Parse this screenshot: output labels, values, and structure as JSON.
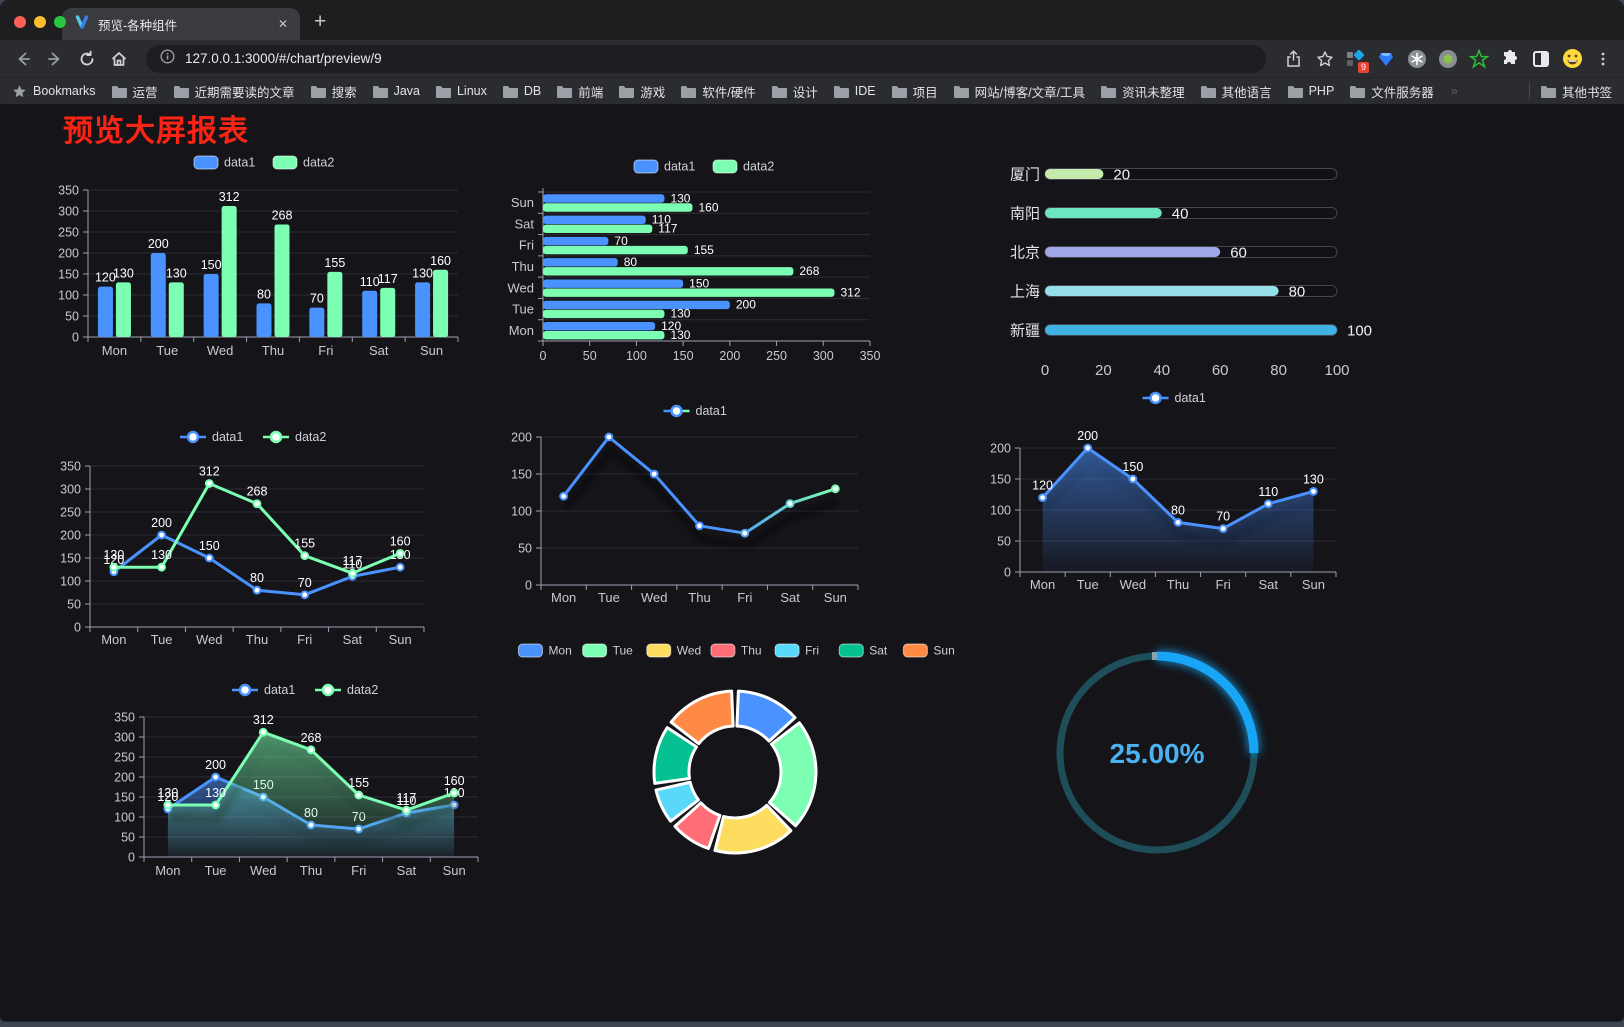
{
  "browser": {
    "tab_title": "预览-各种组件",
    "tab_close": "✕",
    "new_tab_button": "+",
    "url": "127.0.0.1:3000/#/chart/preview/9",
    "extension_badge": "9",
    "traffic_light_colors": [
      "#ff5f57",
      "#febc2e",
      "#28c840"
    ],
    "bookmarks_bar": {
      "bookmarks_label": "Bookmarks",
      "folders": [
        "运营",
        "近期需要读的文章",
        "搜索",
        "Java",
        "Linux",
        "DB",
        "前端",
        "游戏",
        "软件/硬件",
        "设计",
        "IDE",
        "项目",
        "网站/博客/文章/工具",
        "资讯未整理",
        "其他语言",
        "PHP",
        "文件服务器"
      ],
      "overflow_chevron": "»",
      "other_bookmarks": "其他书签"
    }
  },
  "page": {
    "title": "预览大屏报表",
    "title_color": "#fb2414"
  },
  "chart_data": [
    {
      "id": "bar-vertical",
      "type": "bar",
      "orientation": "vertical",
      "categories": [
        "Mon",
        "Tue",
        "Wed",
        "Thu",
        "Fri",
        "Sat",
        "Sun"
      ],
      "series": [
        {
          "name": "data1",
          "color": "#4992ff",
          "values": [
            120,
            200,
            150,
            80,
            70,
            110,
            130
          ]
        },
        {
          "name": "data2",
          "color": "#7cffb2",
          "values": [
            130,
            130,
            312,
            268,
            155,
            117,
            160
          ]
        }
      ],
      "ylim": [
        0,
        350
      ],
      "ytick_step": 50,
      "legend_position": "top",
      "grid": true,
      "value_labels": true
    },
    {
      "id": "bar-horizontal",
      "type": "bar",
      "orientation": "horizontal",
      "note": "Sun displayed at top, Mon at bottom",
      "categories": [
        "Mon",
        "Tue",
        "Wed",
        "Thu",
        "Fri",
        "Sat",
        "Sun"
      ],
      "series": [
        {
          "name": "data1",
          "color": "#4992ff",
          "values": [
            120,
            200,
            150,
            80,
            70,
            110,
            130
          ]
        },
        {
          "name": "data2",
          "color": "#7cffb2",
          "values": [
            130,
            130,
            312,
            268,
            155,
            117,
            160
          ]
        }
      ],
      "xlim": [
        0,
        350
      ],
      "xtick_step": 50,
      "legend_position": "top",
      "value_labels": true
    },
    {
      "id": "capsule-bars",
      "type": "bar",
      "subtype": "capsule-progress",
      "categories": [
        "厦门",
        "南阳",
        "北京",
        "上海",
        "新疆"
      ],
      "values": [
        20,
        40,
        60,
        80,
        100
      ],
      "colors": [
        "#c4ebad",
        "#6be6c1",
        "#a0a7e6",
        "#96dee8",
        "#3fb1e3"
      ],
      "xlim": [
        0,
        100
      ],
      "xticks": [
        0,
        20,
        40,
        60,
        80,
        100
      ],
      "value_labels": true
    },
    {
      "id": "line-two-series",
      "type": "line",
      "categories": [
        "Mon",
        "Tue",
        "Wed",
        "Thu",
        "Fri",
        "Sat",
        "Sun"
      ],
      "series": [
        {
          "name": "data1",
          "color": "#4992ff",
          "values": [
            120,
            200,
            150,
            80,
            70,
            110,
            130
          ]
        },
        {
          "name": "data2",
          "color": "#7cffb2",
          "values": [
            130,
            130,
            312,
            268,
            155,
            117,
            160
          ]
        }
      ],
      "ylim": [
        0,
        350
      ],
      "ytick_step": 50,
      "legend_position": "top",
      "value_labels": true
    },
    {
      "id": "line-gradient",
      "type": "line",
      "categories": [
        "Mon",
        "Tue",
        "Wed",
        "Thu",
        "Fri",
        "Sat",
        "Sun"
      ],
      "series": [
        {
          "name": "data1",
          "gradient": [
            "#4992ff",
            "#7cffb2"
          ],
          "values": [
            120,
            200,
            150,
            80,
            70,
            110,
            130
          ],
          "shadow": true
        }
      ],
      "ylim": [
        0,
        200
      ],
      "ytick_step": 50,
      "legend_position": "top",
      "value_labels": false
    },
    {
      "id": "line-area",
      "type": "line",
      "categories": [
        "Mon",
        "Tue",
        "Wed",
        "Thu",
        "Fri",
        "Sat",
        "Sun"
      ],
      "series": [
        {
          "name": "data1",
          "color": "#4992ff",
          "values": [
            120,
            200,
            150,
            80,
            70,
            110,
            130
          ],
          "area": true,
          "shadow": true
        }
      ],
      "ylim": [
        0,
        200
      ],
      "ytick_step": 50,
      "legend_position": "top",
      "value_labels": true
    },
    {
      "id": "line-two-series-area",
      "type": "line",
      "categories": [
        "Mon",
        "Tue",
        "Wed",
        "Thu",
        "Fri",
        "Sat",
        "Sun"
      ],
      "series": [
        {
          "name": "data1",
          "color": "#4992ff",
          "values": [
            120,
            200,
            150,
            80,
            70,
            110,
            130
          ],
          "area": true,
          "shadow": true
        },
        {
          "name": "data2",
          "color": "#7cffb2",
          "values": [
            130,
            130,
            312,
            268,
            155,
            117,
            160
          ],
          "area": true,
          "shadow": true
        }
      ],
      "ylim": [
        0,
        350
      ],
      "ytick_step": 50,
      "legend_position": "top",
      "value_labels": true
    },
    {
      "id": "donut",
      "type": "pie",
      "subtype": "donut-rounded",
      "labels": [
        "Mon",
        "Tue",
        "Wed",
        "Thu",
        "Fri",
        "Sat",
        "Sun"
      ],
      "values": [
        120,
        200,
        150,
        80,
        70,
        110,
        130
      ],
      "colors": [
        "#4992ff",
        "#7cffb2",
        "#fddd60",
        "#ff6e76",
        "#58d9f9",
        "#05c091",
        "#ff8a45"
      ],
      "legend_position": "top",
      "border_color": "#ffffff"
    },
    {
      "id": "gauge",
      "type": "gauge",
      "value": 25,
      "label": "25.00%",
      "range": [
        0,
        100
      ],
      "progress_color": "#18a5f5",
      "track_color": "#1d4e59",
      "text_color": "#4ab1f2"
    }
  ]
}
